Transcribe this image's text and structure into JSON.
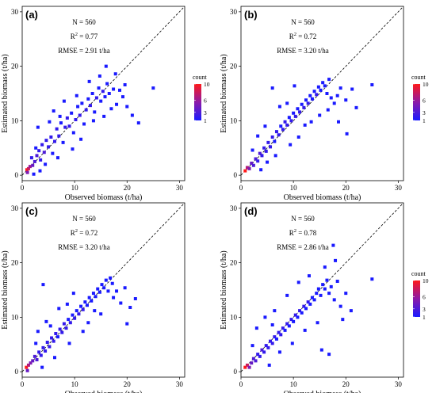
{
  "common": {
    "xlabel": "Observed biomass (t/ha)",
    "ylabel": "Estimated biomass (t/ha)",
    "ticks": [
      0,
      10,
      20,
      30
    ],
    "xlim": [
      0,
      31
    ],
    "ylim": [
      -1,
      31
    ],
    "legend_title": "count",
    "legend_ticks": [
      1,
      3,
      6,
      10
    ],
    "colors": {
      "low": "#1a1aff",
      "mid": "#8c1aa8",
      "high": "#ff1a1a",
      "refline": "#000000"
    }
  },
  "chart_data": [
    {
      "type": "heatmap",
      "panel": "(a)",
      "stats": {
        "n": "N = 560",
        "r2_prefix": "R",
        "r2_sup": "2",
        "r2_value": " = 0.77",
        "rmse": "RMSE = 2.91 t/ha"
      },
      "grid_on": false,
      "legend_position": "right",
      "cells": [
        [
          0.9,
          1.0,
          10
        ],
        [
          1.2,
          1.2,
          8
        ],
        [
          1.5,
          1.6,
          6
        ],
        [
          1.0,
          0.5,
          5
        ],
        [
          2.0,
          1.8,
          4
        ],
        [
          2.4,
          2.5,
          3
        ],
        [
          1.8,
          3.2,
          2
        ],
        [
          2.8,
          3.6,
          3
        ],
        [
          3.2,
          4.5,
          2
        ],
        [
          3.5,
          2.8,
          2
        ],
        [
          3.8,
          5.6,
          2
        ],
        [
          4.2,
          4.2,
          3
        ],
        [
          4.6,
          6.4,
          2
        ],
        [
          5.0,
          5.2,
          2
        ],
        [
          5.5,
          7.0,
          2
        ],
        [
          5.8,
          4.0,
          1
        ],
        [
          6.2,
          6.2,
          2
        ],
        [
          6.6,
          8.5,
          2
        ],
        [
          7.0,
          7.2,
          2
        ],
        [
          7.4,
          9.6,
          1
        ],
        [
          7.8,
          6.0,
          1
        ],
        [
          8.2,
          8.8,
          2
        ],
        [
          8.6,
          10.5,
          2
        ],
        [
          9.0,
          9.0,
          2
        ],
        [
          9.4,
          11.4,
          1
        ],
        [
          9.8,
          7.8,
          1
        ],
        [
          10.2,
          10.2,
          2
        ],
        [
          10.6,
          12.6,
          1
        ],
        [
          11.0,
          11.0,
          2
        ],
        [
          11.4,
          13.2,
          1
        ],
        [
          11.8,
          9.4,
          1
        ],
        [
          12.2,
          12.0,
          2
        ],
        [
          12.6,
          14.0,
          1
        ],
        [
          13.0,
          12.8,
          2
        ],
        [
          13.4,
          15.0,
          1
        ],
        [
          13.8,
          11.6,
          1
        ],
        [
          14.2,
          14.2,
          2
        ],
        [
          14.6,
          16.0,
          1
        ],
        [
          15.0,
          13.6,
          1
        ],
        [
          15.4,
          15.4,
          2
        ],
        [
          15.8,
          14.4,
          1
        ],
        [
          16.2,
          16.8,
          1
        ],
        [
          16.6,
          15.0,
          1
        ],
        [
          17.0,
          12.2,
          1
        ],
        [
          17.4,
          15.8,
          1
        ],
        [
          18.0,
          13.0,
          1
        ],
        [
          18.6,
          15.6,
          1
        ],
        [
          19.2,
          14.4,
          1
        ],
        [
          20.0,
          12.6,
          1
        ],
        [
          21.0,
          11.0,
          1
        ],
        [
          22.2,
          9.6,
          1
        ],
        [
          25.0,
          16.0,
          1
        ],
        [
          16.0,
          20.0,
          1
        ],
        [
          17.8,
          18.6,
          1
        ],
        [
          3.0,
          8.8,
          1
        ],
        [
          5.2,
          9.8,
          1
        ],
        [
          6.0,
          11.8,
          1
        ],
        [
          8.0,
          13.6,
          1
        ],
        [
          12.8,
          17.2,
          1
        ],
        [
          14.8,
          18.2,
          1
        ],
        [
          9.6,
          4.8,
          1
        ],
        [
          11.2,
          6.6,
          1
        ],
        [
          4.4,
          2.0,
          1
        ],
        [
          2.2,
          0.2,
          1
        ],
        [
          3.4,
          0.8,
          1
        ],
        [
          6.8,
          3.2,
          1
        ],
        [
          2.6,
          5.0,
          1
        ],
        [
          7.2,
          10.8,
          1
        ],
        [
          10.4,
          14.6,
          1
        ],
        [
          13.6,
          10.0,
          1
        ],
        [
          15.6,
          10.8,
          1
        ],
        [
          19.6,
          16.6,
          1
        ]
      ]
    },
    {
      "type": "heatmap",
      "panel": "(b)",
      "stats": {
        "n": "N = 560",
        "r2_prefix": "R",
        "r2_sup": "2",
        "r2_value": " = 0.72",
        "rmse": "RMSE = 3.20 t/ha"
      },
      "grid_on": false,
      "legend_position": "right",
      "cells": [
        [
          0.8,
          0.8,
          10
        ],
        [
          1.2,
          1.4,
          7
        ],
        [
          1.6,
          1.2,
          5
        ],
        [
          2.0,
          2.2,
          4
        ],
        [
          2.4,
          1.8,
          3
        ],
        [
          2.8,
          3.0,
          3
        ],
        [
          3.2,
          2.6,
          2
        ],
        [
          3.6,
          4.0,
          3
        ],
        [
          4.0,
          3.6,
          2
        ],
        [
          4.4,
          5.0,
          2
        ],
        [
          4.8,
          4.4,
          2
        ],
        [
          5.2,
          6.0,
          2
        ],
        [
          5.6,
          5.2,
          2
        ],
        [
          6.0,
          7.0,
          2
        ],
        [
          6.4,
          6.2,
          1
        ],
        [
          6.8,
          8.0,
          2
        ],
        [
          7.2,
          7.4,
          2
        ],
        [
          7.6,
          9.0,
          1
        ],
        [
          8.0,
          8.4,
          2
        ],
        [
          8.4,
          9.8,
          2
        ],
        [
          8.8,
          9.2,
          2
        ],
        [
          9.2,
          10.6,
          1
        ],
        [
          9.6,
          10.0,
          2
        ],
        [
          10.0,
          11.4,
          1
        ],
        [
          10.4,
          10.8,
          2
        ],
        [
          10.8,
          12.2,
          1
        ],
        [
          11.2,
          11.6,
          2
        ],
        [
          11.6,
          13.0,
          1
        ],
        [
          12.0,
          12.4,
          2
        ],
        [
          12.4,
          13.8,
          1
        ],
        [
          12.8,
          13.2,
          2
        ],
        [
          13.2,
          14.6,
          1
        ],
        [
          13.6,
          14.0,
          1
        ],
        [
          14.0,
          15.4,
          1
        ],
        [
          14.4,
          14.8,
          2
        ],
        [
          14.8,
          16.2,
          1
        ],
        [
          15.2,
          15.6,
          1
        ],
        [
          15.6,
          17.0,
          1
        ],
        [
          16.0,
          16.4,
          1
        ],
        [
          16.4,
          15.0,
          1
        ],
        [
          16.8,
          17.6,
          1
        ],
        [
          17.2,
          14.2,
          1
        ],
        [
          17.8,
          13.2,
          1
        ],
        [
          18.4,
          14.6,
          1
        ],
        [
          19.0,
          16.0,
          1
        ],
        [
          20.0,
          13.8,
          1
        ],
        [
          21.2,
          15.8,
          1
        ],
        [
          22.0,
          12.4,
          1
        ],
        [
          25.0,
          16.6,
          1
        ],
        [
          6.0,
          16.0,
          1
        ],
        [
          10.2,
          16.4,
          1
        ],
        [
          20.2,
          7.6,
          1
        ],
        [
          3.2,
          7.2,
          1
        ],
        [
          4.6,
          9.0,
          1
        ],
        [
          7.4,
          12.6,
          1
        ],
        [
          12.2,
          9.2,
          1
        ],
        [
          15.0,
          11.0,
          1
        ],
        [
          18.6,
          9.8,
          1
        ],
        [
          6.6,
          3.6,
          1
        ],
        [
          9.4,
          5.6,
          1
        ],
        [
          3.8,
          1.0,
          1
        ],
        [
          2.2,
          4.6,
          1
        ],
        [
          5.0,
          2.4,
          1
        ],
        [
          11.0,
          7.0,
          1
        ],
        [
          13.4,
          9.8,
          1
        ],
        [
          8.8,
          13.2,
          1
        ],
        [
          16.6,
          12.0,
          1
        ]
      ]
    },
    {
      "type": "heatmap",
      "panel": "(c)",
      "stats": {
        "n": "N = 560",
        "r2_prefix": "R",
        "r2_sup": "2",
        "r2_value": " = 0.72",
        "rmse": "RMSE = 3.20 t/ha"
      },
      "grid_on": false,
      "legend_position": "none",
      "cells": [
        [
          0.8,
          0.8,
          10
        ],
        [
          1.2,
          1.2,
          7
        ],
        [
          1.6,
          1.6,
          5
        ],
        [
          1.0,
          0.2,
          4
        ],
        [
          2.0,
          2.0,
          4
        ],
        [
          2.4,
          2.8,
          3
        ],
        [
          2.8,
          2.2,
          3
        ],
        [
          3.2,
          3.6,
          2
        ],
        [
          3.6,
          3.0,
          2
        ],
        [
          4.0,
          4.4,
          2
        ],
        [
          4.4,
          3.8,
          2
        ],
        [
          4.8,
          5.4,
          2
        ],
        [
          5.2,
          4.6,
          2
        ],
        [
          5.6,
          6.2,
          2
        ],
        [
          6.0,
          5.6,
          2
        ],
        [
          6.4,
          7.0,
          2
        ],
        [
          6.8,
          6.4,
          1
        ],
        [
          7.2,
          7.8,
          2
        ],
        [
          7.6,
          7.2,
          2
        ],
        [
          8.0,
          8.8,
          2
        ],
        [
          8.4,
          8.0,
          2
        ],
        [
          8.8,
          9.6,
          1
        ],
        [
          9.2,
          9.0,
          2
        ],
        [
          9.6,
          10.4,
          1
        ],
        [
          10.0,
          9.8,
          2
        ],
        [
          10.4,
          11.2,
          1
        ],
        [
          10.8,
          10.6,
          2
        ],
        [
          11.2,
          12.0,
          1
        ],
        [
          11.6,
          11.4,
          2
        ],
        [
          12.0,
          12.8,
          1
        ],
        [
          12.4,
          12.2,
          1
        ],
        [
          12.8,
          13.6,
          1
        ],
        [
          13.2,
          13.0,
          1
        ],
        [
          13.6,
          14.4,
          1
        ],
        [
          14.0,
          13.8,
          1
        ],
        [
          14.4,
          15.2,
          1
        ],
        [
          14.8,
          14.6,
          1
        ],
        [
          15.2,
          16.0,
          1
        ],
        [
          15.6,
          15.4,
          1
        ],
        [
          16.0,
          16.8,
          1
        ],
        [
          16.4,
          14.8,
          1
        ],
        [
          16.8,
          17.2,
          1
        ],
        [
          17.4,
          13.6,
          1
        ],
        [
          18.0,
          14.8,
          1
        ],
        [
          18.8,
          12.6,
          1
        ],
        [
          19.6,
          15.4,
          1
        ],
        [
          20.6,
          11.8,
          1
        ],
        [
          21.6,
          13.4,
          1
        ],
        [
          20.0,
          8.8,
          1
        ],
        [
          4.0,
          16.0,
          1
        ],
        [
          3.0,
          7.4,
          1
        ],
        [
          4.6,
          9.2,
          1
        ],
        [
          7.0,
          11.6,
          1
        ],
        [
          9.8,
          14.4,
          1
        ],
        [
          12.6,
          9.0,
          1
        ],
        [
          15.0,
          10.6,
          1
        ],
        [
          6.2,
          2.6,
          1
        ],
        [
          9.0,
          5.2,
          1
        ],
        [
          11.6,
          7.4,
          1
        ],
        [
          2.6,
          5.2,
          1
        ],
        [
          3.8,
          0.8,
          1
        ],
        [
          5.4,
          8.4,
          1
        ],
        [
          13.8,
          11.2,
          1
        ],
        [
          17.2,
          16.2,
          1
        ],
        [
          8.6,
          12.4,
          1
        ]
      ]
    },
    {
      "type": "heatmap",
      "panel": "(d)",
      "stats": {
        "n": "N = 560",
        "r2_prefix": "R",
        "r2_sup": "2",
        "r2_value": " = 0.78",
        "rmse": "RMSE = 2.86 t/ha"
      },
      "grid_on": false,
      "legend_position": "right",
      "cells": [
        [
          0.8,
          0.8,
          10
        ],
        [
          1.2,
          1.2,
          8
        ],
        [
          1.6,
          0.8,
          5
        ],
        [
          2.0,
          1.6,
          4
        ],
        [
          2.4,
          2.4,
          3
        ],
        [
          2.8,
          2.0,
          3
        ],
        [
          3.2,
          3.2,
          2
        ],
        [
          3.6,
          2.8,
          2
        ],
        [
          4.0,
          4.0,
          3
        ],
        [
          4.4,
          3.6,
          2
        ],
        [
          4.8,
          4.8,
          2
        ],
        [
          5.2,
          4.4,
          2
        ],
        [
          5.6,
          5.6,
          2
        ],
        [
          6.0,
          5.2,
          2
        ],
        [
          6.4,
          6.4,
          2
        ],
        [
          6.8,
          6.0,
          1
        ],
        [
          7.2,
          7.2,
          2
        ],
        [
          7.6,
          6.8,
          2
        ],
        [
          8.0,
          8.0,
          2
        ],
        [
          8.4,
          7.6,
          1
        ],
        [
          8.8,
          8.8,
          2
        ],
        [
          9.2,
          8.4,
          1
        ],
        [
          9.6,
          9.6,
          2
        ],
        [
          10.0,
          9.2,
          1
        ],
        [
          10.4,
          10.4,
          2
        ],
        [
          10.8,
          10.0,
          1
        ],
        [
          11.2,
          11.2,
          2
        ],
        [
          11.6,
          10.8,
          1
        ],
        [
          12.0,
          12.0,
          2
        ],
        [
          12.4,
          11.6,
          1
        ],
        [
          12.8,
          12.8,
          2
        ],
        [
          13.2,
          12.4,
          1
        ],
        [
          13.6,
          13.6,
          1
        ],
        [
          14.0,
          13.2,
          1
        ],
        [
          14.4,
          14.4,
          1
        ],
        [
          14.8,
          15.2,
          1
        ],
        [
          15.2,
          14.0,
          1
        ],
        [
          15.6,
          16.0,
          1
        ],
        [
          16.0,
          15.2,
          1
        ],
        [
          16.4,
          16.8,
          1
        ],
        [
          16.8,
          14.4,
          1
        ],
        [
          17.2,
          15.6,
          1
        ],
        [
          17.8,
          13.2,
          1
        ],
        [
          18.4,
          16.6,
          1
        ],
        [
          19.0,
          12.0,
          1
        ],
        [
          20.0,
          14.4,
          1
        ],
        [
          21.0,
          11.2,
          1
        ],
        [
          25.0,
          17.0,
          1
        ],
        [
          17.6,
          23.2,
          1
        ],
        [
          16.0,
          19.2,
          1
        ],
        [
          18.0,
          20.4,
          1
        ],
        [
          3.0,
          8.0,
          1
        ],
        [
          4.6,
          10.0,
          1
        ],
        [
          6.4,
          11.2,
          1
        ],
        [
          8.8,
          14.0,
          1
        ],
        [
          11.0,
          16.4,
          1
        ],
        [
          9.8,
          5.2,
          1
        ],
        [
          12.2,
          7.6,
          1
        ],
        [
          14.6,
          9.0,
          1
        ],
        [
          16.8,
          3.2,
          1
        ],
        [
          15.4,
          4.0,
          1
        ],
        [
          5.4,
          1.2,
          1
        ],
        [
          7.4,
          3.6,
          1
        ],
        [
          2.2,
          4.8,
          1
        ],
        [
          13.0,
          17.6,
          1
        ],
        [
          19.4,
          9.6,
          1
        ],
        [
          6.0,
          8.6,
          1
        ]
      ]
    }
  ]
}
